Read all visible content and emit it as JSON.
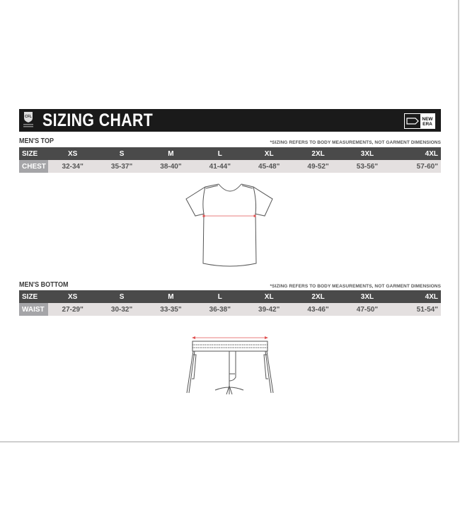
{
  "header": {
    "title": "SIZING CHART",
    "left_logo": "CFL official logo",
    "right_logo": "NEW ERA"
  },
  "colors": {
    "banner": "#1a1a1a",
    "table_header": "#4a4a4a",
    "row_label": "#a5a5a8",
    "row_bg": "#e4e0e0",
    "measure_line": "#e05050"
  },
  "top": {
    "title": "MEN'S TOP",
    "note": "*SIZING REFERS TO BODY MEASUREMENTS, NOT GARMENT DIMENSIONS",
    "header_label": "SIZE",
    "sizes": [
      "XS",
      "S",
      "M",
      "L",
      "XL",
      "2XL",
      "3XL",
      "4XL"
    ],
    "row_label": "CHEST",
    "values": [
      "32-34\"",
      "35-37\"",
      "38-40\"",
      "41-44\"",
      "45-48\"",
      "49-52\"",
      "53-56\"",
      "57-60\""
    ]
  },
  "bottom": {
    "title": "MEN'S BOTTOM",
    "note": "*SIZING REFERS TO BODY MEASUREMENTS, NOT GARMENT DIMENSIONS",
    "header_label": "SIZE",
    "sizes": [
      "XS",
      "S",
      "M",
      "L",
      "XL",
      "2XL",
      "3XL",
      "4XL"
    ],
    "row_label": "WAIST",
    "values": [
      "27-29\"",
      "30-32\"",
      "33-35\"",
      "36-38\"",
      "39-42\"",
      "43-46\"",
      "47-50\"",
      "51-54\""
    ]
  }
}
